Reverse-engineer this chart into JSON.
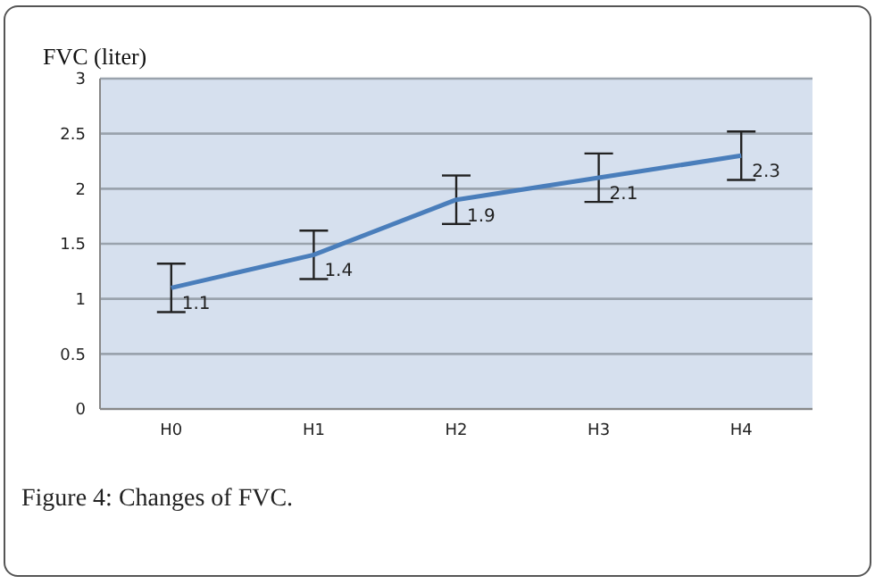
{
  "chart_data": {
    "type": "line",
    "title": "Figure 4: Changes of FVC.",
    "ylabel": "FVC (liter)",
    "categories": [
      "H0",
      "H1",
      "H2",
      "H3",
      "H4"
    ],
    "series": [
      {
        "color": "#4a7ebb",
        "values": [
          1.1,
          1.4,
          1.9,
          2.1,
          2.3
        ],
        "errors": [
          0.22,
          0.22,
          0.22,
          0.22,
          0.22
        ]
      }
    ],
    "ylim": [
      0,
      3
    ],
    "yticks": [
      0,
      0.5,
      1,
      1.5,
      2,
      2.5,
      3
    ],
    "grid": "y",
    "data_labels": true,
    "marker": "none",
    "line_style": "solid"
  }
}
